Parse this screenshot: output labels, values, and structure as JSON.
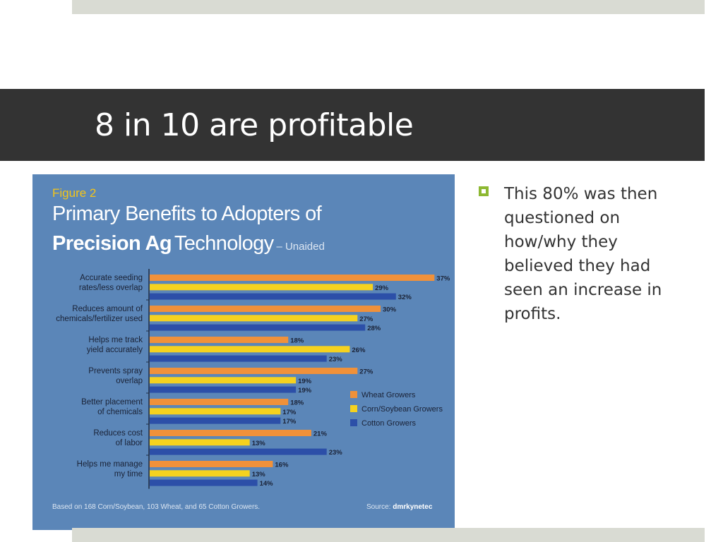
{
  "slide": {
    "title": "8 in 10 are profitable",
    "bullet": "This 80% was then questioned on how/why they believed they had seen an increase in profits."
  },
  "figure": {
    "label": "Figure 2",
    "title_line1": "Primary Benefits to Adopters of",
    "title_bold": "Precision Ag",
    "title_regular": "Technology",
    "title_suffix": "– Unaided",
    "footnote": "Based on 168 Corn/Soybean, 103 Wheat, and 65 Cotton Growers.",
    "source_prefix": "Source: ",
    "source_name": "dmrkynetec"
  },
  "colors": {
    "accent_green": "#8db832",
    "title_bar": "#333333",
    "figure_bg": "#5b86b8"
  },
  "chart_data": {
    "type": "bar",
    "orientation": "horizontal",
    "categories": [
      [
        "Accurate seeding",
        "rates/less overlap"
      ],
      [
        "Reduces amount of",
        "chemicals/fertilizer used"
      ],
      [
        "Helps me track",
        "yield accurately"
      ],
      [
        "Prevents spray",
        "overlap"
      ],
      [
        "Better placement",
        "of chemicals"
      ],
      [
        "Reduces cost",
        "of labor"
      ],
      [
        "Helps me manage",
        "my time"
      ]
    ],
    "series": [
      {
        "name": "Wheat Growers",
        "color": "#f0913a",
        "values": [
          37,
          30,
          18,
          27,
          18,
          21,
          16
        ]
      },
      {
        "name": "Corn/Soybean Growers",
        "color": "#f5d21f",
        "values": [
          29,
          27,
          26,
          19,
          17,
          13,
          13
        ]
      },
      {
        "name": "Cotton Growers",
        "color": "#2c4fa8",
        "values": [
          32,
          28,
          23,
          19,
          17,
          23,
          14
        ]
      }
    ],
    "value_suffix": "%",
    "xlim": [
      0,
      40
    ],
    "legend_position": "right",
    "grid": false
  }
}
